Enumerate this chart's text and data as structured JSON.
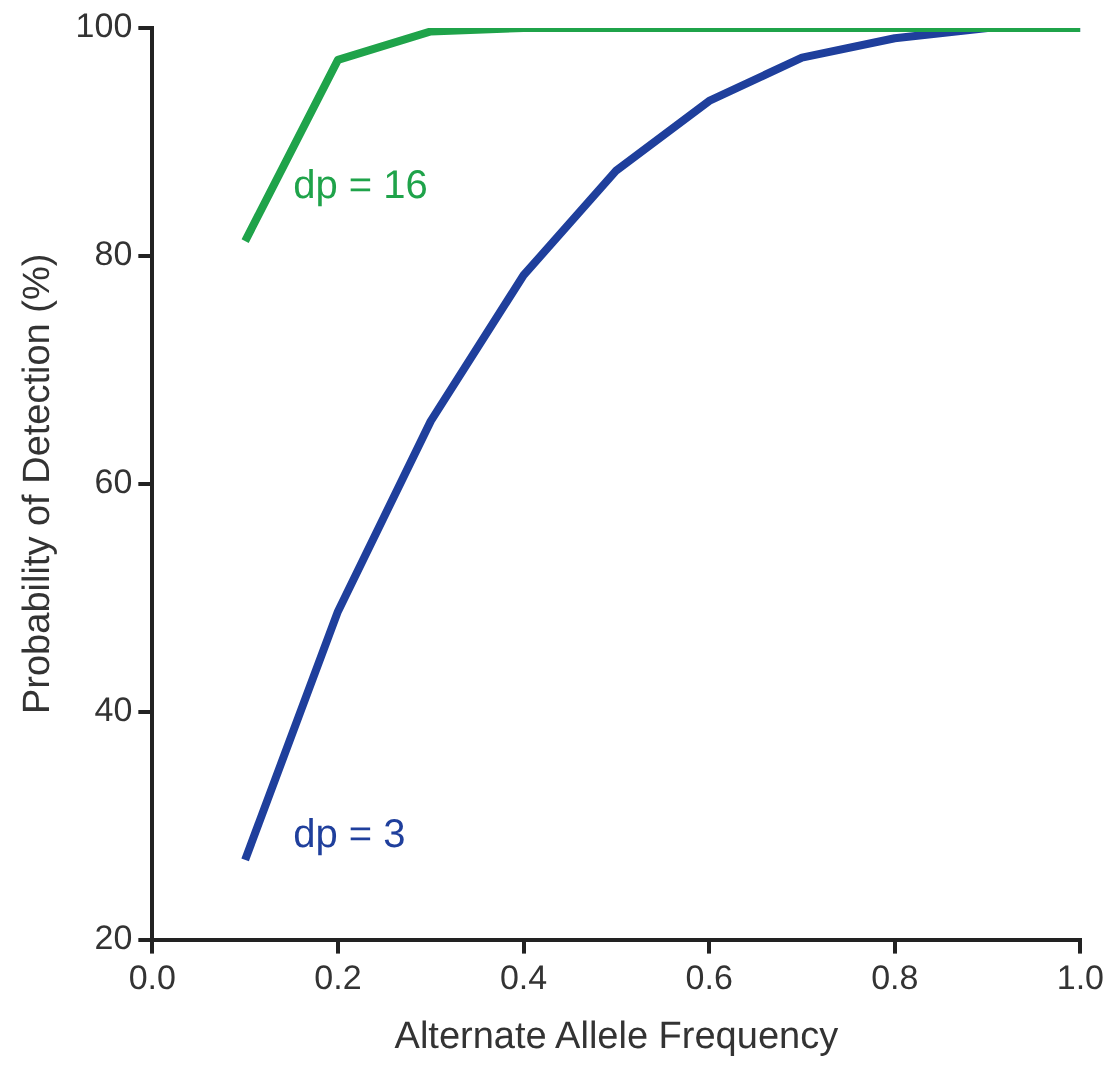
{
  "chart_data": {
    "type": "line",
    "xlabel": "Alternate Allele Frequency",
    "ylabel": "Probability of Detection (%)",
    "xlim": [
      0,
      1
    ],
    "ylim": [
      20,
      100
    ],
    "xticks": [
      {
        "value": 0,
        "label": "0.0"
      },
      {
        "value": 0.2,
        "label": "0.2"
      },
      {
        "value": 0.4,
        "label": "0.4"
      },
      {
        "value": 0.6,
        "label": "0.6"
      },
      {
        "value": 0.8,
        "label": "0.8"
      },
      {
        "value": 1,
        "label": "1.0"
      }
    ],
    "yticks": [
      20,
      40,
      60,
      80,
      100
    ],
    "x": [
      0.1,
      0.2,
      0.3,
      0.4,
      0.5,
      0.6,
      0.7,
      0.8,
      0.9,
      1.0
    ],
    "grid": false,
    "legend": false,
    "marker": "none",
    "line_style": "solid",
    "series": [
      {
        "name": "dp = 16",
        "color": "#1fa34a",
        "values": [
          81.3,
          97.2,
          99.7,
          100,
          100,
          100,
          100,
          100,
          100,
          100
        ]
      },
      {
        "name": "dp = 3",
        "color": "#1f3f9c",
        "values": [
          27,
          48.8,
          65.5,
          78.3,
          87.5,
          93.6,
          97.4,
          99.1,
          100,
          100
        ]
      }
    ]
  }
}
